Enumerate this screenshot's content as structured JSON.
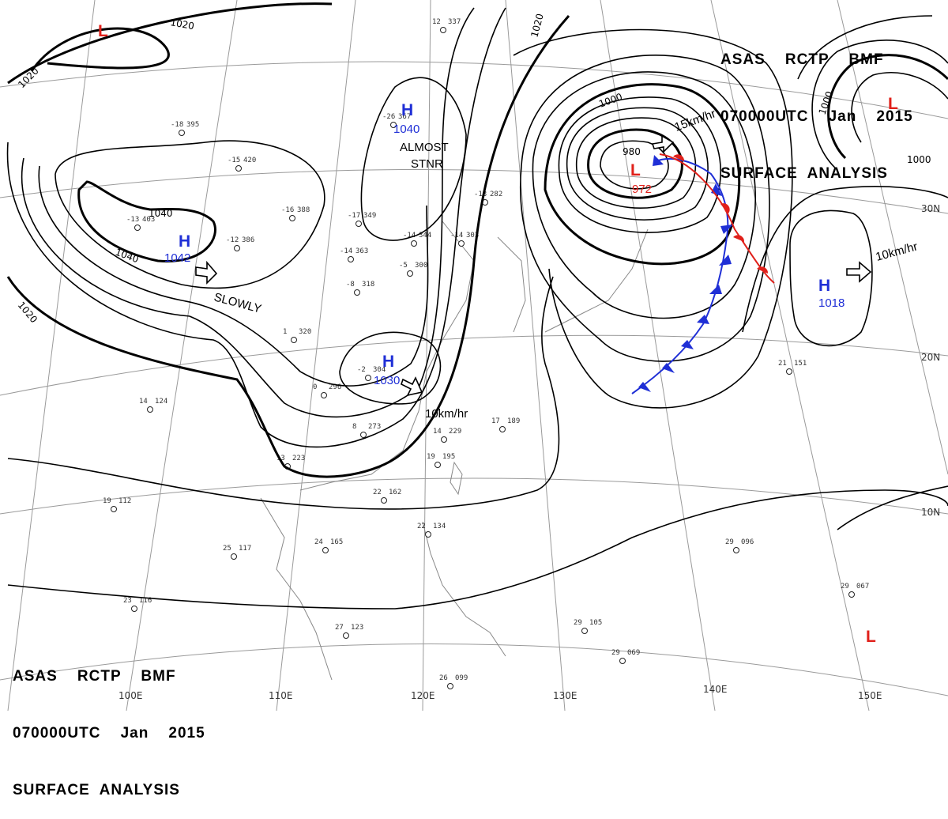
{
  "header": {
    "line1": "ASAS    RCTP    BMF",
    "line2": "070000UTC    Jan    2015",
    "line3": "SURFACE  ANALYSIS"
  },
  "colors": {
    "high": "#1f2fd6",
    "low": "#e0201a",
    "cold_front": "#1f2fd6",
    "warm_front": "#e0201a",
    "isobar": "#000000",
    "grid": "#9a9a9a"
  },
  "pressure_centers": {
    "h1042": {
      "label": "H",
      "value": "1042"
    },
    "h1040": {
      "label": "H",
      "value": "1040"
    },
    "h1030": {
      "label": "H",
      "value": "1030"
    },
    "h1018": {
      "label": "H",
      "value": "1018"
    },
    "l972": {
      "label": "L",
      "value": "972"
    },
    "l_nw": {
      "label": "L"
    },
    "l_ne": {
      "label": "L"
    },
    "l_se": {
      "label": "L"
    }
  },
  "isobar_labels": {
    "i1020a": "1020",
    "i1020b": "1020",
    "i1020c": "1020",
    "i1020d": "1020",
    "i1040a": "1040",
    "i1040b": "1040",
    "i1000a": "1000",
    "i1000b": "1000",
    "i1000c": "1000",
    "i980": "980"
  },
  "annotations": {
    "slowly": "SLOWLY",
    "almost": "ALMOST",
    "stnr": "STNR",
    "move1030": "10km/hr",
    "move972": "15km/hr",
    "move1018": "10km/hr"
  },
  "grid_labels": {
    "lon": [
      "100E",
      "110E",
      "120E",
      "130E",
      "140E",
      "150E"
    ],
    "lat": [
      "30N",
      "20N",
      "10N"
    ]
  },
  "station_samples": [
    {
      "t": "-26",
      "p": "367"
    },
    {
      "t": "-18",
      "p": "395"
    },
    {
      "t": "-15",
      "p": "420"
    },
    {
      "t": "-13",
      "p": "403"
    },
    {
      "t": "-12",
      "p": "386"
    },
    {
      "t": "-16",
      "p": "388"
    },
    {
      "t": "-14",
      "p": "344"
    },
    {
      "t": "-14",
      "p": "303"
    },
    {
      "t": "-13",
      "p": "282"
    },
    {
      "t": "-17",
      "p": "349"
    },
    {
      "t": "-14",
      "p": "363"
    },
    {
      "t": "-8",
      "p": "318"
    },
    {
      "t": "-5",
      "p": "300"
    },
    {
      "t": "-2",
      "p": "304"
    },
    {
      "t": "1",
      "p": "320"
    },
    {
      "t": "0",
      "p": "296"
    },
    {
      "t": "8",
      "p": "273"
    },
    {
      "t": "13",
      "p": "223"
    },
    {
      "t": "14",
      "p": "229"
    },
    {
      "t": "19",
      "p": "195"
    },
    {
      "t": "17",
      "p": "189"
    },
    {
      "t": "22",
      "p": "162"
    },
    {
      "t": "19",
      "p": "112"
    },
    {
      "t": "24",
      "p": "165"
    },
    {
      "t": "22",
      "p": "134"
    },
    {
      "t": "21",
      "p": "151"
    },
    {
      "t": "25",
      "p": "117"
    },
    {
      "t": "27",
      "p": "123"
    },
    {
      "t": "26",
      "p": "099"
    },
    {
      "t": "29",
      "p": "105"
    },
    {
      "t": "29",
      "p": "096"
    },
    {
      "t": "29",
      "p": "069"
    },
    {
      "t": "29",
      "p": "067"
    },
    {
      "t": "23",
      "p": "116"
    },
    {
      "t": "12",
      "p": "337"
    },
    {
      "t": "14",
      "p": "124"
    }
  ]
}
